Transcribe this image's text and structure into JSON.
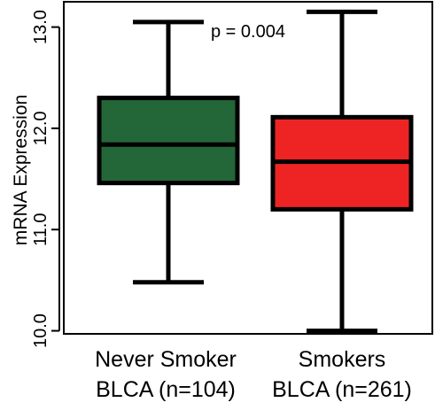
{
  "chart_data": {
    "type": "box",
    "ylabel": "mRNA Expression",
    "ylim": [
      9.97,
      13.25
    ],
    "yticks": [
      10.0,
      11.0,
      12.0,
      13.0
    ],
    "ytick_labels": [
      "10.0",
      "11.0",
      "12.0",
      "13.0"
    ],
    "annotation": "p = 0.004",
    "groups": [
      {
        "label_line1": "Never Smoker",
        "label_line2": "BLCA (n=104)",
        "color": "#236638",
        "whisker_min": 10.48,
        "q1": 11.46,
        "median": 11.84,
        "q3": 12.3,
        "whisker_max": 13.05
      },
      {
        "label_line1": "Smokers",
        "label_line2": "BLCA (n=261)",
        "color": "#ee2424",
        "whisker_min": 10.0,
        "q1": 11.2,
        "median": 11.67,
        "q3": 12.11,
        "whisker_max": 13.15
      }
    ]
  }
}
